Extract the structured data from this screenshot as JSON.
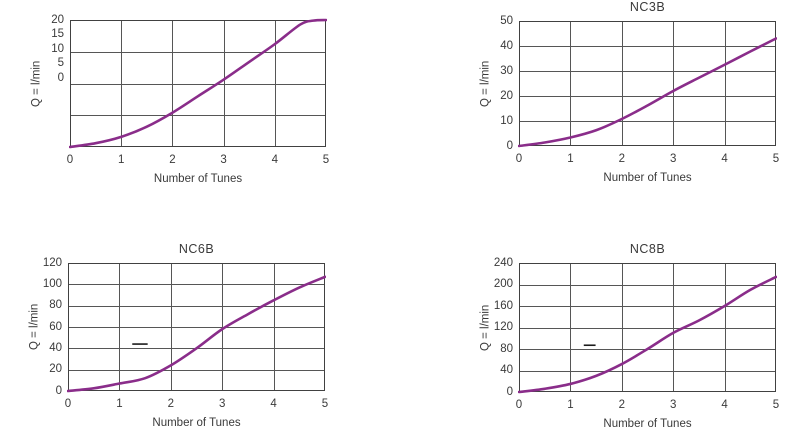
{
  "colors": {
    "curve": "#8a2d8a",
    "grid": "#565656",
    "frame": "#414141",
    "text": "#3a3a3a",
    "artifact": "#1c1c1c",
    "background": "#ffffff"
  },
  "chart_data": [
    {
      "type": "line",
      "title": "",
      "xlabel": "Number of Tunes",
      "ylabel": "Q = l/min",
      "xlim": [
        0,
        5
      ],
      "ylim": [
        0,
        20
      ],
      "x_ticks": [
        0,
        1,
        2,
        3,
        4,
        5
      ],
      "x_tick_labels": [
        "0",
        "1",
        "2",
        "3",
        "4",
        "5"
      ],
      "y_ticks": [
        0,
        5,
        10,
        15,
        20
      ],
      "y_tick_labels": [
        "20",
        "15",
        "10",
        "5",
        "0"
      ],
      "y_labels_compressed": true,
      "grid": true,
      "legend": false,
      "line_color": "#8a2d8a",
      "x": [
        0,
        0.5,
        1,
        1.5,
        2,
        2.5,
        3,
        3.5,
        4,
        4.5,
        4.75,
        5
      ],
      "values": [
        0,
        0.6,
        1.6,
        3.2,
        5.4,
        8,
        10.6,
        13.4,
        16.2,
        19.3,
        19.9,
        20
      ]
    },
    {
      "type": "line",
      "title": "NC3B",
      "xlabel": "Number of Tunes",
      "ylabel": "Q = l/min",
      "xlim": [
        0,
        5
      ],
      "ylim": [
        0,
        50
      ],
      "x_ticks": [
        0,
        1,
        2,
        3,
        4,
        5
      ],
      "x_tick_labels": [
        "0",
        "1",
        "2",
        "3",
        "4",
        "5"
      ],
      "y_ticks": [
        0,
        10,
        20,
        30,
        40,
        50
      ],
      "y_tick_labels": [
        "50",
        "40",
        "30",
        "20",
        "10",
        "0"
      ],
      "y_labels_compressed": false,
      "grid": true,
      "legend": false,
      "line_color": "#8a2d8a",
      "x": [
        0,
        0.5,
        1,
        1.5,
        2,
        2.5,
        3,
        3.5,
        4,
        4.5,
        5
      ],
      "values": [
        0,
        1.4,
        3.4,
        6.3,
        10.8,
        16.2,
        22,
        27.3,
        32.5,
        37.8,
        43
      ]
    },
    {
      "type": "line",
      "title": "NC6B",
      "xlabel": "Number of Tunes",
      "ylabel": "Q = l/min",
      "xlim": [
        0,
        5
      ],
      "ylim": [
        0,
        120
      ],
      "x_ticks": [
        0,
        1,
        2,
        3,
        4,
        5
      ],
      "x_tick_labels": [
        "0",
        "1",
        "2",
        "3",
        "4",
        "5"
      ],
      "y_ticks": [
        0,
        20,
        40,
        60,
        80,
        100,
        120
      ],
      "y_tick_labels": [
        "120",
        "100",
        "80",
        "60",
        "40",
        "20",
        "0"
      ],
      "y_labels_compressed": false,
      "grid": true,
      "legend": false,
      "line_color": "#8a2d8a",
      "x": [
        0,
        0.5,
        1,
        1.5,
        2,
        2.5,
        3,
        3.5,
        4,
        4.5,
        5
      ],
      "values": [
        0,
        2.5,
        7,
        12,
        24,
        40,
        58,
        72,
        85,
        97,
        107
      ],
      "artifact_dash": {
        "x_start": 1.25,
        "x_end": 1.55,
        "y": 44
      }
    },
    {
      "type": "line",
      "title": "NC8B",
      "xlabel": "Number of Tunes",
      "ylabel": "Q = l/min",
      "xlim": [
        0,
        5
      ],
      "ylim": [
        0,
        240
      ],
      "x_ticks": [
        0,
        1,
        2,
        3,
        4,
        5
      ],
      "x_tick_labels": [
        "0",
        "1",
        "2",
        "3",
        "4",
        "5"
      ],
      "y_ticks": [
        0,
        40,
        80,
        120,
        160,
        200,
        240
      ],
      "y_tick_labels": [
        "240",
        "200",
        "160",
        "120",
        "80",
        "40",
        "0"
      ],
      "y_labels_compressed": false,
      "grid": true,
      "legend": false,
      "line_color": "#8a2d8a",
      "x": [
        0,
        0.5,
        1,
        1.5,
        2,
        2.5,
        3,
        3.5,
        4,
        4.5,
        5
      ],
      "values": [
        0,
        6,
        15,
        30,
        52,
        80,
        110,
        133,
        160,
        190,
        214
      ],
      "artifact_dash": {
        "x_start": 1.26,
        "x_end": 1.49,
        "y": 87
      }
    }
  ]
}
